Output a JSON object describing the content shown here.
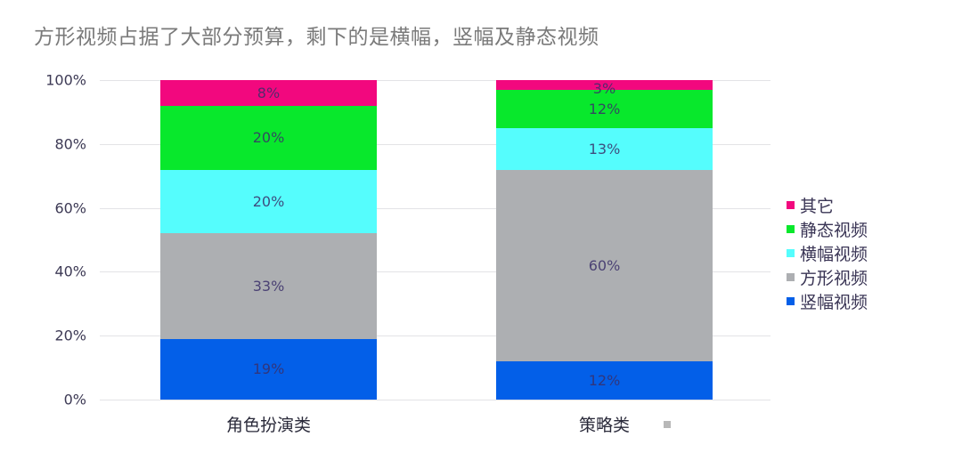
{
  "title": "方形视频占据了大部分预算，剩下的是横幅，竖幅及静态视频",
  "y_ticks": [
    "100%",
    "80%",
    "60%",
    "40%",
    "20%",
    "0%"
  ],
  "colors": {
    "其它": "#f2087e",
    "静态视频": "#08e82c",
    "横幅视频": "#55fdfd",
    "方形视频": "#adafb2",
    "竖幅视频": "#035fe8"
  },
  "legend": [
    "其它",
    "静态视频",
    "横幅视频",
    "方形视频",
    "竖幅视频"
  ],
  "categories": [
    "角色扮演类",
    "策略类"
  ],
  "bars": [
    {
      "label": "角色扮演类",
      "segments": [
        {
          "name": "竖幅视频",
          "value": 19,
          "label": "19%"
        },
        {
          "name": "方形视频",
          "value": 33,
          "label": "33%"
        },
        {
          "name": "横幅视频",
          "value": 20,
          "label": "20%"
        },
        {
          "name": "静态视频",
          "value": 20,
          "label": "20%"
        },
        {
          "name": "其它",
          "value": 8,
          "label": "8%"
        }
      ]
    },
    {
      "label": "策略类",
      "segments": [
        {
          "name": "竖幅视频",
          "value": 12,
          "label": "12%"
        },
        {
          "name": "方形视频",
          "value": 60,
          "label": "60%"
        },
        {
          "name": "横幅视频",
          "value": 13,
          "label": "13%"
        },
        {
          "name": "静态视频",
          "value": 12,
          "label": "12%"
        },
        {
          "name": "其它",
          "value": 3,
          "label": "3%"
        }
      ]
    }
  ],
  "chart_data": {
    "type": "bar",
    "stacked": true,
    "title": "方形视频占据了大部分预算，剩下的是横幅，竖幅及静态视频",
    "categories": [
      "角色扮演类",
      "策略类"
    ],
    "series": [
      {
        "name": "竖幅视频",
        "values": [
          19,
          12
        ]
      },
      {
        "name": "方形视频",
        "values": [
          33,
          60
        ]
      },
      {
        "name": "横幅视频",
        "values": [
          20,
          13
        ]
      },
      {
        "name": "静态视频",
        "values": [
          20,
          12
        ]
      },
      {
        "name": "其它",
        "values": [
          8,
          3
        ]
      }
    ],
    "xlabel": "",
    "ylabel": "",
    "ylim": [
      0,
      100
    ],
    "y_tick_labels": [
      "0%",
      "20%",
      "40%",
      "60%",
      "80%",
      "100%"
    ],
    "grid": true,
    "legend_position": "right"
  }
}
